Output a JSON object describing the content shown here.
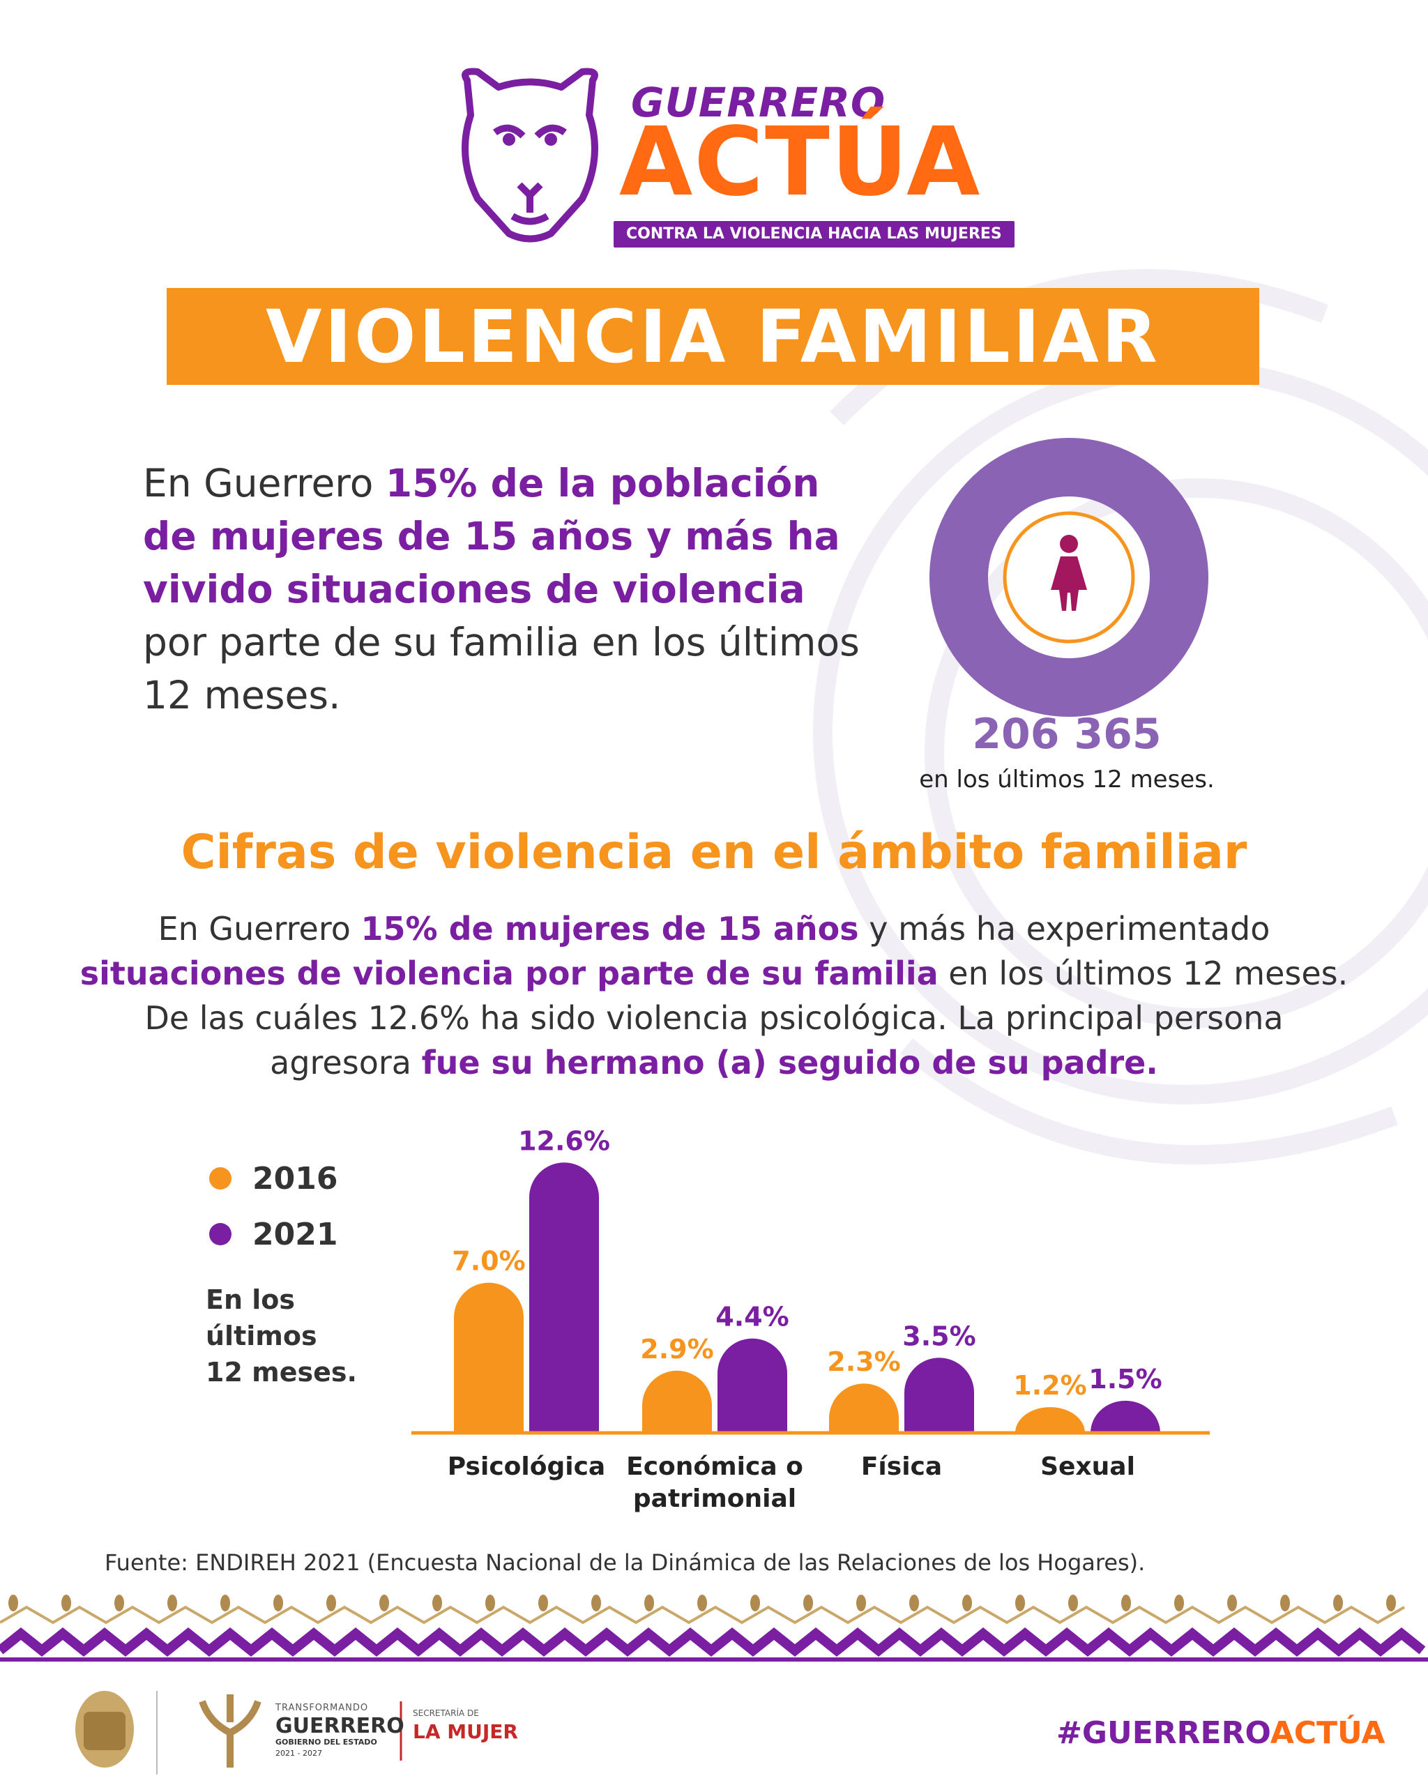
{
  "header": {
    "logo_line1": "GUERRERO",
    "logo_line2": "ACTÚA",
    "logo_tagline": "CONTRA LA VIOLENCIA HACIA LAS MUJERES"
  },
  "title": "VIOLENCIA FAMILIAR",
  "intro": {
    "part1": "En Guerrero ",
    "highlight": "15% de la población de mujeres de 15 años y más ha vivido situaciones de violencia",
    "part2": " por parte de su familia en los últimos 12 meses."
  },
  "stat": {
    "number": "206 365",
    "caption": "en los últimos 12 meses."
  },
  "section_heading": "Cifras de violencia en el ámbito familiar",
  "body": {
    "p1": "En Guerrero ",
    "h1": "15% de mujeres de 15 años",
    "p2": " y más ha experimentado ",
    "h2": "situaciones de violencia por parte de su familia",
    "p3": " en los últimos 12 meses. De las cuáles 12.6% ha sido violencia psicológica. La principal persona agresora ",
    "h3": "fue su hermano (a) seguido de su padre."
  },
  "chart_note_1": "En los últimos",
  "chart_note_2": "12 meses.",
  "colors": {
    "orange": "#f7941d",
    "purple": "#7b1fa2",
    "donut": "#8a63b5",
    "logo_orange": "#ff6a13"
  },
  "chart_data": {
    "type": "bar",
    "categories": [
      "Psicológica",
      "Económica o\npatrimonial",
      "Física",
      "Sexual"
    ],
    "series": [
      {
        "name": "2016",
        "values": [
          7.0,
          2.9,
          2.3,
          1.2
        ],
        "labels": [
          "7.0%",
          "2.9%",
          "2.3%",
          "1.2%"
        ],
        "color": "#f7941d"
      },
      {
        "name": "2021",
        "values": [
          12.6,
          4.4,
          3.5,
          1.5
        ],
        "labels": [
          "12.6%",
          "4.4%",
          "3.5%",
          "1.5%"
        ],
        "color": "#7b1fa2"
      }
    ],
    "ylim": [
      0,
      13
    ],
    "legend": "left"
  },
  "source": "Fuente: ENDIREH 2021 (Encuesta Nacional de la Dinámica de las Relaciones de los Hogares).",
  "footer": {
    "gob_small": "TRANSFORMANDO",
    "gob_big": "GUERRERO",
    "gob_sub": "GOBIERNO DEL ESTADO",
    "gob_years": "2021 - 2027",
    "sec_small": "SECRETARÍA DE",
    "sec_big": "LA MUJER",
    "hashtag_a": "#GUERRERO",
    "hashtag_b": "ACTÚA"
  }
}
